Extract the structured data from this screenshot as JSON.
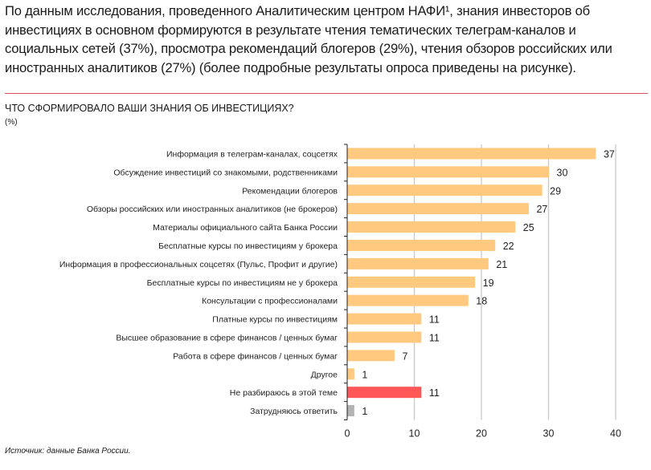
{
  "intro_text": "По данным исследования, проведенного Аналитическим центром НАФИ¹, знания инвесторов об инвестициях в основном формируются в результате чтения тематических телеграм-каналов и социальных сетей (37%), просмотра рекомендаций блогеров (29%), чтения обзоров российских или иностранных аналитиков (27%) (более подробные результаты опроса приведены на рисунке).",
  "source": "Источник: данные Банка России.",
  "chart_data": {
    "type": "bar",
    "orientation": "horizontal",
    "title": "ЧТО СФОРМИРОВАЛО ВАШИ ЗНАНИЯ ОБ ИНВЕСТИЦИЯХ?",
    "unit": "(%)",
    "xlim": [
      0,
      40
    ],
    "xticks": [
      0,
      10,
      20,
      30,
      40
    ],
    "grid": "vertical",
    "colors": {
      "default": "#ffc97f",
      "highlight": "#ff5757",
      "neutral": "#b3b3b3"
    },
    "categories": [
      "Информация в телеграм-каналах, соцсетях",
      "Обсуждение инвестиций со знакомыми, родственниками",
      "Рекомендации блогеров",
      "Обзоры российских или иностранных аналитиков (не брокеров)",
      "Материалы официального сайта Банка России",
      "Бесплатные курсы по инвестициям у брокера",
      "Информация в профессиональных соцсетях (Пульс, Профит и другие)",
      "Бесплатные курсы по инвестициям не у брокера",
      "Консультации с профессионалами",
      "Платные курсы по инвестициям",
      "Высшее образование в сфере финансов / ценных бумаг",
      "Работа в сфере финансов / ценных бумаг",
      "Другое",
      "Не разбираюсь в этой теме",
      "Затрудняюсь ответить"
    ],
    "values": [
      37,
      30,
      29,
      27,
      25,
      22,
      21,
      19,
      18,
      11,
      11,
      7,
      1,
      11,
      1
    ],
    "bar_color_keys": [
      "default",
      "default",
      "default",
      "default",
      "default",
      "default",
      "default",
      "default",
      "default",
      "default",
      "default",
      "default",
      "default",
      "highlight",
      "neutral"
    ]
  }
}
